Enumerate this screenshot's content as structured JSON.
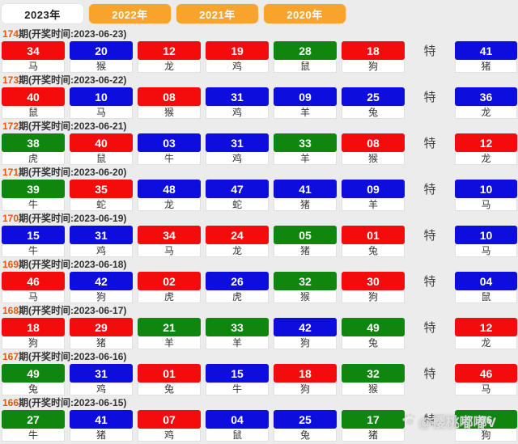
{
  "page": {
    "background": "#ececec"
  },
  "colors": {
    "red": "#f40b0b",
    "blue": "#0d0ddd",
    "green": "#0f870f",
    "tab_active_bg": "#ffffff",
    "tab_active_text": "#222222",
    "tab_inactive_bg": "#f8a32b",
    "tab_inactive_text": "#ffffff",
    "period_accent": "#e2590e",
    "label_text": "#333333"
  },
  "tabs": {
    "items": [
      {
        "label": "2023年",
        "active": true
      },
      {
        "label": "2022年",
        "active": false
      },
      {
        "label": "2021年",
        "active": false
      },
      {
        "label": "2020年",
        "active": false
      }
    ]
  },
  "special_column_label": "特",
  "watermark": {
    "icon": "paw-icon",
    "text": "@樱桃嘟嘟V"
  },
  "draws": [
    {
      "period": "174",
      "suffix": "期(开奖时间:2023-06-23)",
      "balls": [
        {
          "num": "34",
          "color": "red",
          "zodiac": "马"
        },
        {
          "num": "20",
          "color": "blue",
          "zodiac": "猴"
        },
        {
          "num": "12",
          "color": "red",
          "zodiac": "龙"
        },
        {
          "num": "19",
          "color": "red",
          "zodiac": "鸡"
        },
        {
          "num": "28",
          "color": "green",
          "zodiac": "鼠"
        },
        {
          "num": "18",
          "color": "red",
          "zodiac": "狗"
        }
      ],
      "special": {
        "num": "41",
        "color": "blue",
        "zodiac": "猪"
      }
    },
    {
      "period": "173",
      "suffix": "期(开奖时间:2023-06-22)",
      "balls": [
        {
          "num": "40",
          "color": "red",
          "zodiac": "鼠"
        },
        {
          "num": "10",
          "color": "blue",
          "zodiac": "马"
        },
        {
          "num": "08",
          "color": "red",
          "zodiac": "猴"
        },
        {
          "num": "31",
          "color": "blue",
          "zodiac": "鸡"
        },
        {
          "num": "09",
          "color": "blue",
          "zodiac": "羊"
        },
        {
          "num": "25",
          "color": "blue",
          "zodiac": "兔"
        }
      ],
      "special": {
        "num": "36",
        "color": "blue",
        "zodiac": "龙"
      }
    },
    {
      "period": "172",
      "suffix": "期(开奖时间:2023-06-21)",
      "balls": [
        {
          "num": "38",
          "color": "green",
          "zodiac": "虎"
        },
        {
          "num": "40",
          "color": "red",
          "zodiac": "鼠"
        },
        {
          "num": "03",
          "color": "blue",
          "zodiac": "牛"
        },
        {
          "num": "31",
          "color": "blue",
          "zodiac": "鸡"
        },
        {
          "num": "33",
          "color": "green",
          "zodiac": "羊"
        },
        {
          "num": "08",
          "color": "red",
          "zodiac": "猴"
        }
      ],
      "special": {
        "num": "12",
        "color": "red",
        "zodiac": "龙"
      }
    },
    {
      "period": "171",
      "suffix": "期(开奖时间:2023-06-20)",
      "balls": [
        {
          "num": "39",
          "color": "green",
          "zodiac": "牛"
        },
        {
          "num": "35",
          "color": "red",
          "zodiac": "蛇"
        },
        {
          "num": "48",
          "color": "blue",
          "zodiac": "龙"
        },
        {
          "num": "47",
          "color": "blue",
          "zodiac": "蛇"
        },
        {
          "num": "41",
          "color": "blue",
          "zodiac": "猪"
        },
        {
          "num": "09",
          "color": "blue",
          "zodiac": "羊"
        }
      ],
      "special": {
        "num": "10",
        "color": "blue",
        "zodiac": "马"
      }
    },
    {
      "period": "170",
      "suffix": "期(开奖时间:2023-06-19)",
      "balls": [
        {
          "num": "15",
          "color": "blue",
          "zodiac": "牛"
        },
        {
          "num": "31",
          "color": "blue",
          "zodiac": "鸡"
        },
        {
          "num": "34",
          "color": "red",
          "zodiac": "马"
        },
        {
          "num": "24",
          "color": "red",
          "zodiac": "龙"
        },
        {
          "num": "05",
          "color": "green",
          "zodiac": "猪"
        },
        {
          "num": "01",
          "color": "red",
          "zodiac": "兔"
        }
      ],
      "special": {
        "num": "10",
        "color": "blue",
        "zodiac": "马"
      }
    },
    {
      "period": "169",
      "suffix": "期(开奖时间:2023-06-18)",
      "balls": [
        {
          "num": "46",
          "color": "red",
          "zodiac": "马"
        },
        {
          "num": "42",
          "color": "blue",
          "zodiac": "狗"
        },
        {
          "num": "02",
          "color": "red",
          "zodiac": "虎"
        },
        {
          "num": "26",
          "color": "blue",
          "zodiac": "虎"
        },
        {
          "num": "32",
          "color": "green",
          "zodiac": "猴"
        },
        {
          "num": "30",
          "color": "red",
          "zodiac": "狗"
        }
      ],
      "special": {
        "num": "04",
        "color": "blue",
        "zodiac": "鼠"
      }
    },
    {
      "period": "168",
      "suffix": "期(开奖时间:2023-06-17)",
      "balls": [
        {
          "num": "18",
          "color": "red",
          "zodiac": "狗"
        },
        {
          "num": "29",
          "color": "red",
          "zodiac": "猪"
        },
        {
          "num": "21",
          "color": "green",
          "zodiac": "羊"
        },
        {
          "num": "33",
          "color": "green",
          "zodiac": "羊"
        },
        {
          "num": "42",
          "color": "blue",
          "zodiac": "狗"
        },
        {
          "num": "49",
          "color": "green",
          "zodiac": "兔"
        }
      ],
      "special": {
        "num": "12",
        "color": "red",
        "zodiac": "龙"
      }
    },
    {
      "period": "167",
      "suffix": "期(开奖时间:2023-06-16)",
      "balls": [
        {
          "num": "49",
          "color": "green",
          "zodiac": "兔"
        },
        {
          "num": "31",
          "color": "blue",
          "zodiac": "鸡"
        },
        {
          "num": "01",
          "color": "red",
          "zodiac": "兔"
        },
        {
          "num": "15",
          "color": "blue",
          "zodiac": "牛"
        },
        {
          "num": "18",
          "color": "red",
          "zodiac": "狗"
        },
        {
          "num": "32",
          "color": "green",
          "zodiac": "猴"
        }
      ],
      "special": {
        "num": "46",
        "color": "red",
        "zodiac": "马"
      }
    },
    {
      "period": "166",
      "suffix": "期(开奖时间:2023-06-15)",
      "balls": [
        {
          "num": "27",
          "color": "green",
          "zodiac": "牛"
        },
        {
          "num": "41",
          "color": "blue",
          "zodiac": "猪"
        },
        {
          "num": "07",
          "color": "red",
          "zodiac": "鸡"
        },
        {
          "num": "04",
          "color": "blue",
          "zodiac": "鼠"
        },
        {
          "num": "25",
          "color": "blue",
          "zodiac": "兔"
        },
        {
          "num": "17",
          "color": "green",
          "zodiac": "猪"
        }
      ],
      "special": {
        "num": "06",
        "color": "green",
        "zodiac": "狗"
      }
    }
  ]
}
